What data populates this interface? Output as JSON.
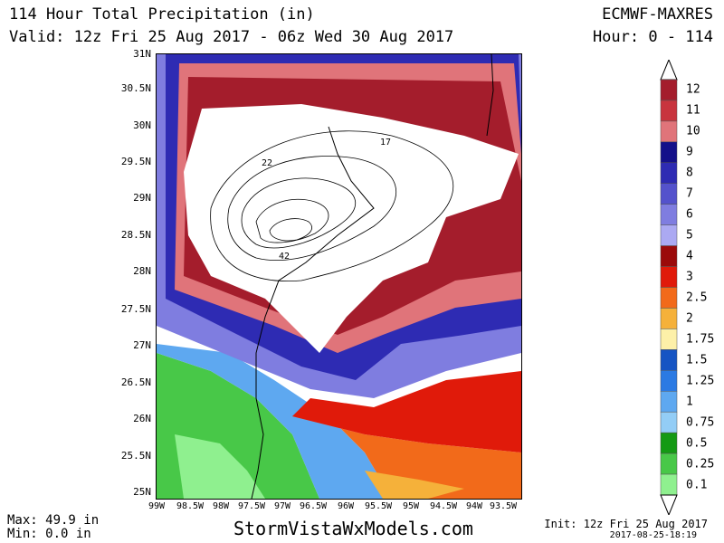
{
  "header": {
    "title": "114 Hour Total Precipitation (in)",
    "valid": "Valid: 12z Fri 25 Aug 2017 - 06z Wed 30 Aug 2017",
    "model": "ECMWF-MAXRES",
    "hour": "Hour: 0 - 114"
  },
  "axes": {
    "lat_labels": [
      "31N",
      "30.5N",
      "30N",
      "29.5N",
      "29N",
      "28.5N",
      "28N",
      "27.5N",
      "27N",
      "26.5N",
      "26N",
      "25.5N",
      "25N"
    ],
    "lon_labels": [
      "99W",
      "98.5W",
      "98W",
      "97.5W",
      "97W",
      "96.5W",
      "96W",
      "95.5W",
      "95W",
      "94.5W",
      "94W",
      "93.5W"
    ]
  },
  "contours": {
    "labels": [
      "17",
      "22",
      "42"
    ]
  },
  "legend": {
    "labels": [
      "12",
      "11",
      "10",
      "9",
      "8",
      "7",
      "6",
      "5",
      "4",
      "3",
      "2.5",
      "2",
      "1.75",
      "1.5",
      "1.25",
      "1",
      "0.75",
      "0.5",
      "0.25",
      "0.1"
    ],
    "colors": [
      "#a41d2c",
      "#c8343e",
      "#e0747a",
      "#14108a",
      "#2e2bb3",
      "#5452cc",
      "#7f7de0",
      "#aba9f2",
      "#9b0a0a",
      "#e01a0a",
      "#f26a1a",
      "#f5b13a",
      "#fdf0a8",
      "#1654c3",
      "#2b7ae3",
      "#5ea8f0",
      "#93cdf6",
      "#149a14",
      "#48c848",
      "#8ff08f"
    ]
  },
  "footer": {
    "max": "Max: 49.9 in",
    "min": "Min: 0.0 in",
    "site": "StormVistaWxModels.com",
    "init": "Init: 12z Fri 25 Aug 2017",
    "stamp": "2017-08-25-18:19"
  }
}
